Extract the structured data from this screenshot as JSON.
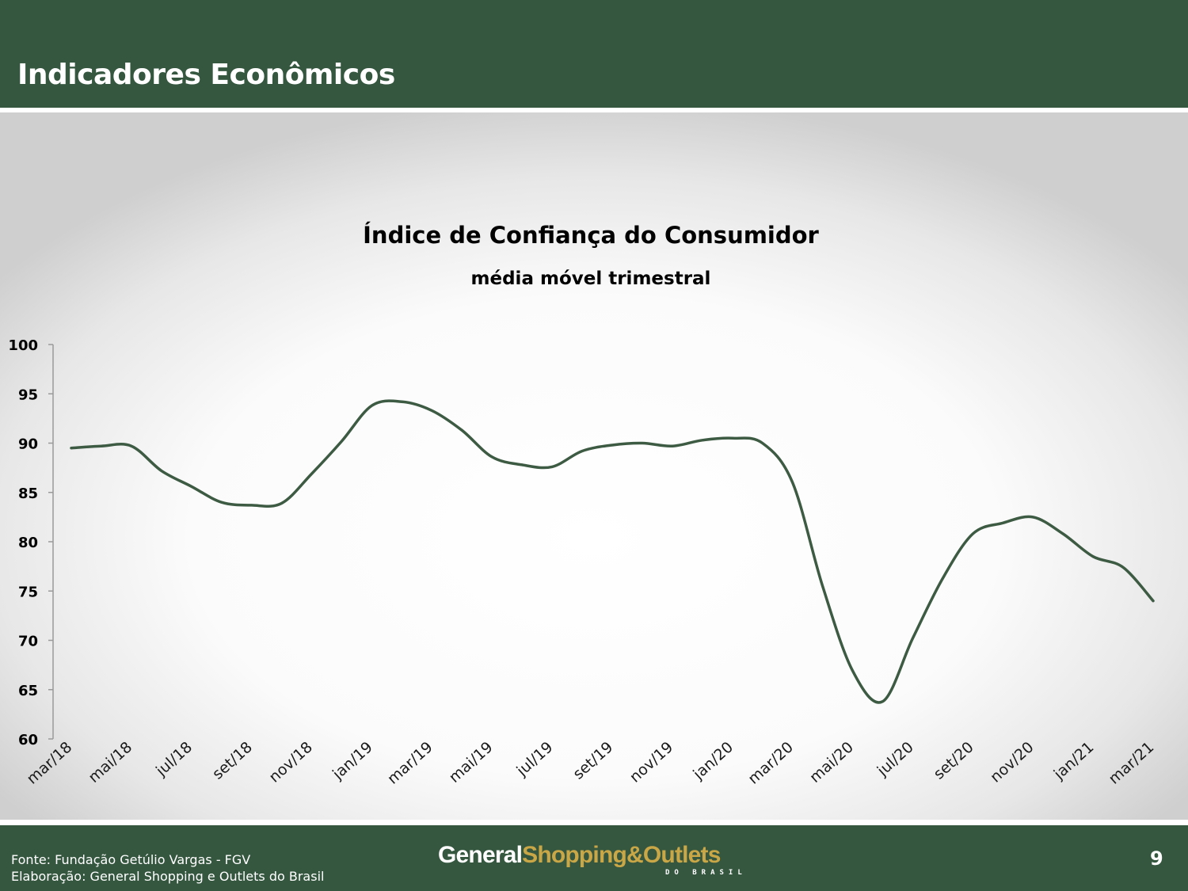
{
  "header": {
    "title": "Indicadores Econômicos"
  },
  "footer": {
    "source": "Fonte: Fundação Getúlio Vargas - FGV",
    "elaboration": "Elaboração: General Shopping e Outlets do Brasil",
    "logo_part1": "General",
    "logo_part2": "Shopping&Outlets",
    "logo_sub": "DO BRASIL",
    "page_number": "9"
  },
  "colors": {
    "brand_green": "#355740",
    "line": "#3d5a43",
    "logo_gold": "#c9a646"
  },
  "chart_data": {
    "type": "line",
    "title": "Índice de Confiança do Consumidor",
    "subtitle": "média móvel trimestral",
    "xlabel": "",
    "ylabel": "",
    "ylim": [
      60,
      100
    ],
    "yticks": [
      60,
      65,
      70,
      75,
      80,
      85,
      90,
      95,
      100
    ],
    "grid": false,
    "legend": "none",
    "x_tick_labels": [
      "mar/18",
      "mai/18",
      "jul/18",
      "set/18",
      "nov/18",
      "jan/19",
      "mar/19",
      "mai/19",
      "jul/19",
      "set/19",
      "nov/19",
      "jan/20",
      "mar/20",
      "mai/20",
      "jul/20",
      "set/20",
      "nov/20",
      "jan/21",
      "mar/21"
    ],
    "x": [
      "mar/18",
      "abr/18",
      "mai/18",
      "jun/18",
      "jul/18",
      "ago/18",
      "set/18",
      "out/18",
      "nov/18",
      "dez/18",
      "jan/19",
      "fev/19",
      "mar/19",
      "abr/19",
      "mai/19",
      "jun/19",
      "jul/19",
      "ago/19",
      "set/19",
      "out/19",
      "nov/19",
      "dez/19",
      "jan/20",
      "fev/20",
      "mar/20",
      "abr/20",
      "mai/20",
      "jun/20",
      "jul/20",
      "ago/20",
      "set/20",
      "out/20",
      "nov/20",
      "dez/20",
      "jan/21",
      "fev/21",
      "mar/21"
    ],
    "series": [
      {
        "values": [
          89.5,
          89.7,
          89.7,
          87.2,
          85.6,
          84.0,
          83.7,
          83.9,
          86.9,
          90.2,
          93.8,
          94.2,
          93.3,
          91.3,
          88.6,
          87.8,
          87.6,
          89.2,
          89.8,
          90.0,
          89.7,
          90.3,
          90.5,
          90.0,
          86.0,
          75.5,
          66.9,
          63.8,
          70.2,
          76.3,
          80.8,
          81.9,
          82.5,
          80.8,
          78.5,
          77.4,
          74.0
        ]
      }
    ]
  }
}
